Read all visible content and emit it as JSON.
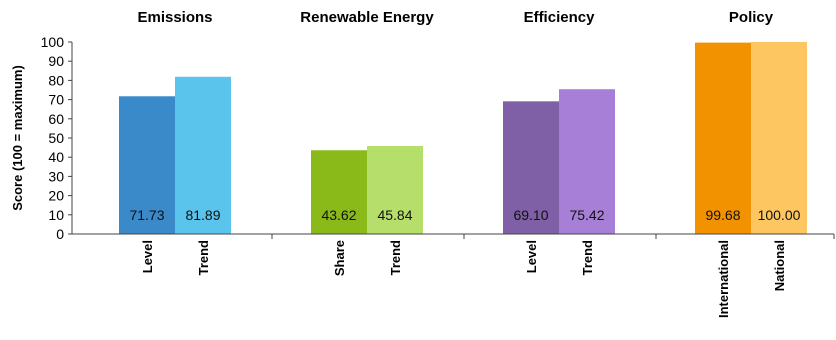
{
  "chart_data": {
    "type": "bar",
    "ylabel": "Score (100 = maximum)",
    "ylim": [
      0,
      100
    ],
    "yticks": [
      0,
      10,
      20,
      30,
      40,
      50,
      60,
      70,
      80,
      90,
      100
    ],
    "grid": false,
    "groups": [
      {
        "name": "Emissions",
        "bars": [
          {
            "category": "Level",
            "value": 71.73,
            "label": "71.73",
            "color": "#3a89c9"
          },
          {
            "category": "Trend",
            "value": 81.89,
            "label": "81.89",
            "color": "#5bc4ec"
          }
        ]
      },
      {
        "name": "Renewable Energy",
        "bars": [
          {
            "category": "Share",
            "value": 43.62,
            "label": "43.62",
            "color": "#8aba1a"
          },
          {
            "category": "Trend",
            "value": 45.84,
            "label": "45.84",
            "color": "#b6de6a"
          }
        ]
      },
      {
        "name": "Efficiency",
        "bars": [
          {
            "category": "Level",
            "value": 69.1,
            "label": "69.10",
            "color": "#7f5fa6"
          },
          {
            "category": "Trend",
            "value": 75.42,
            "label": "75.42",
            "color": "#a87fd6"
          }
        ]
      },
      {
        "name": "Policy",
        "bars": [
          {
            "category": "International",
            "value": 99.68,
            "label": "99.68",
            "color": "#f39200"
          },
          {
            "category": "National",
            "value": 100.0,
            "label": "100.00",
            "color": "#fec660"
          }
        ]
      }
    ]
  }
}
